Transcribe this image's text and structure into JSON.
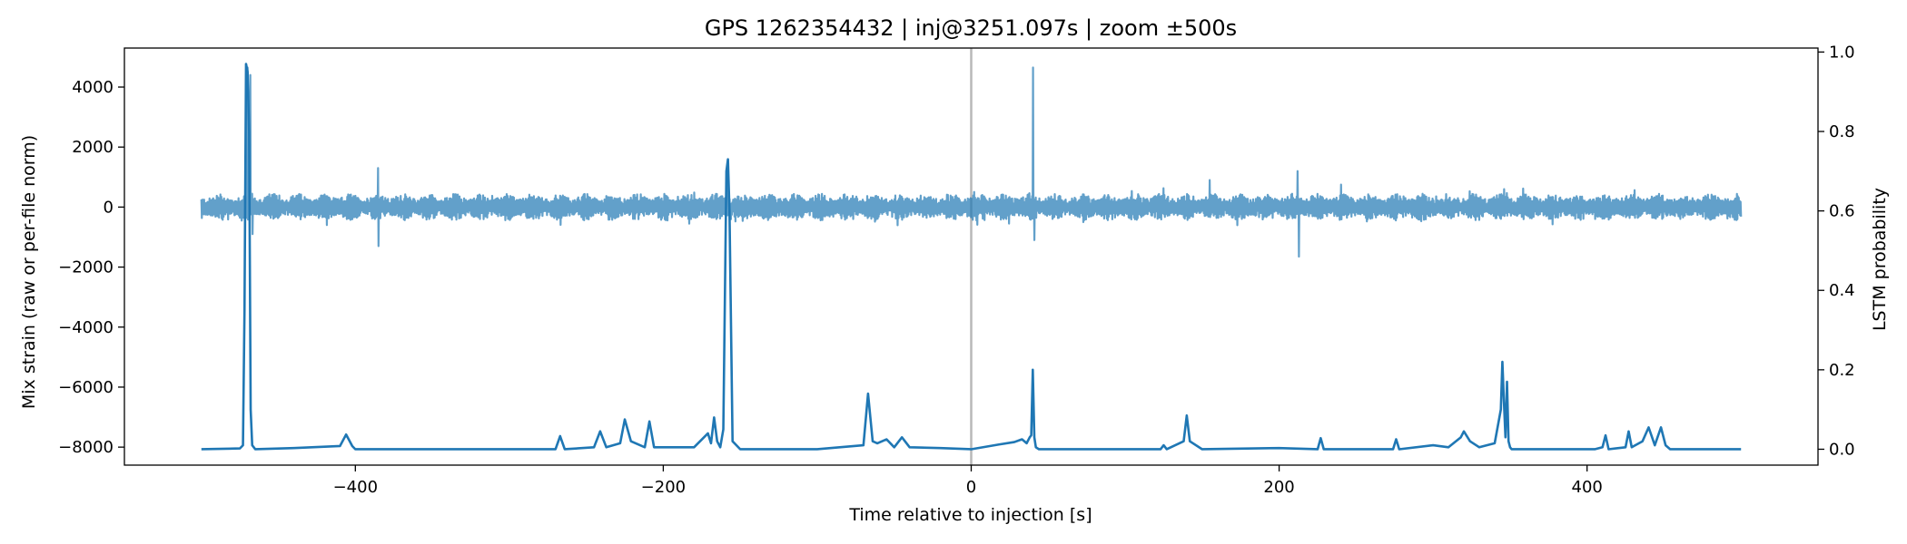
{
  "chart_data": {
    "type": "line",
    "title": "GPS 1262354432 | inj@3251.097s | zoom ±500s",
    "xlabel": "Time relative to injection [s]",
    "ylabel_left": "Mix strain (raw or per-file norm)",
    "ylabel_right": "LSTM probability",
    "xlim": [
      -550,
      550
    ],
    "ylim_left": [
      -8600,
      5300
    ],
    "ylim_right": [
      -0.04,
      1.01
    ],
    "x_ticks": [
      -400,
      -200,
      0,
      200,
      400
    ],
    "x_tick_labels": [
      "−400",
      "−200",
      "0",
      "200",
      "400"
    ],
    "y_left_ticks": [
      -8000,
      -6000,
      -4000,
      -2000,
      0,
      2000,
      4000
    ],
    "y_left_tick_labels": [
      "−8000",
      "−6000",
      "−4000",
      "−2000",
      "0",
      "2000",
      "4000"
    ],
    "y_right_ticks": [
      0.0,
      0.2,
      0.4,
      0.6,
      0.8,
      1.0
    ],
    "y_right_tick_labels": [
      "0.0",
      "0.2",
      "0.4",
      "0.6",
      "0.8",
      "1.0"
    ],
    "grid": false,
    "legend": "none",
    "injection_marker_x": 0,
    "series": [
      {
        "axis": "left",
        "color": "#1f77b4",
        "opacity": 0.7,
        "x_range": [
          -500,
          500
        ],
        "baseline_envelope": 450,
        "spikes": [
          {
            "x": -470,
            "y": 4650
          },
          {
            "x": -468,
            "y": 4400
          },
          {
            "x": -467,
            "y": -900
          },
          {
            "x": -385,
            "y": 1300
          },
          {
            "x": -385,
            "y": -1300
          },
          {
            "x": -158,
            "y": 1500
          },
          {
            "x": 40,
            "y": 4650
          },
          {
            "x": 41,
            "y": -1100
          },
          {
            "x": 155,
            "y": 900
          },
          {
            "x": 212,
            "y": 1200
          },
          {
            "x": 213,
            "y": -1650
          },
          {
            "x": 240,
            "y": 750
          }
        ]
      },
      {
        "axis": "right",
        "color": "#1f77b4",
        "opacity": 1.0,
        "x": [
          -500,
          -475,
          -473,
          -472,
          -471,
          -470,
          -469,
          -468,
          -467,
          -465,
          -440,
          -410,
          -406,
          -402,
          -400,
          -316,
          -270,
          -267,
          -264,
          -245,
          -241,
          -237,
          -228,
          -225,
          -221,
          -212,
          -209,
          -206,
          -180,
          -171,
          -169,
          -167,
          -165,
          -163,
          -161,
          -159,
          -158,
          -157,
          -155,
          -150,
          -100,
          -70,
          -67,
          -64,
          -61,
          -55,
          -50,
          -45,
          -40,
          -20,
          0,
          18,
          28,
          33,
          36,
          38,
          39,
          40,
          41,
          42,
          44,
          60,
          123,
          125,
          127,
          138,
          140,
          142,
          150,
          200,
          225,
          227,
          229,
          274,
          276,
          278,
          300,
          310,
          318,
          320,
          324,
          330,
          340,
          344,
          345,
          346,
          347,
          348,
          349,
          350,
          351,
          352,
          354,
          360,
          405,
          410,
          412,
          414,
          425,
          427,
          429,
          436,
          440,
          444,
          448,
          451,
          454,
          500
        ],
        "y": [
          0.0,
          0.002,
          0.01,
          0.35,
          0.97,
          0.95,
          0.8,
          0.1,
          0.01,
          0.0,
          0.003,
          0.008,
          0.037,
          0.008,
          0.0,
          0.0,
          0.0,
          0.033,
          0.0,
          0.005,
          0.045,
          0.005,
          0.015,
          0.075,
          0.02,
          0.005,
          0.07,
          0.005,
          0.005,
          0.04,
          0.015,
          0.08,
          0.02,
          0.005,
          0.05,
          0.7,
          0.73,
          0.6,
          0.02,
          0.0,
          0.0,
          0.01,
          0.14,
          0.02,
          0.015,
          0.025,
          0.005,
          0.03,
          0.005,
          0.003,
          0.0,
          0.012,
          0.018,
          0.025,
          0.015,
          0.03,
          0.035,
          0.2,
          0.03,
          0.005,
          0.0,
          0.0,
          0.0,
          0.01,
          0.0,
          0.02,
          0.085,
          0.02,
          0.0,
          0.003,
          0.0,
          0.028,
          0.0,
          0.0,
          0.025,
          0.0,
          0.01,
          0.005,
          0.03,
          0.045,
          0.02,
          0.005,
          0.015,
          0.1,
          0.22,
          0.12,
          0.03,
          0.17,
          0.02,
          0.005,
          0.0,
          0.0,
          0.0,
          0.0,
          0.0,
          0.005,
          0.035,
          0.0,
          0.005,
          0.045,
          0.005,
          0.02,
          0.055,
          0.01,
          0.055,
          0.01,
          0.0,
          0.0
        ]
      }
    ]
  }
}
